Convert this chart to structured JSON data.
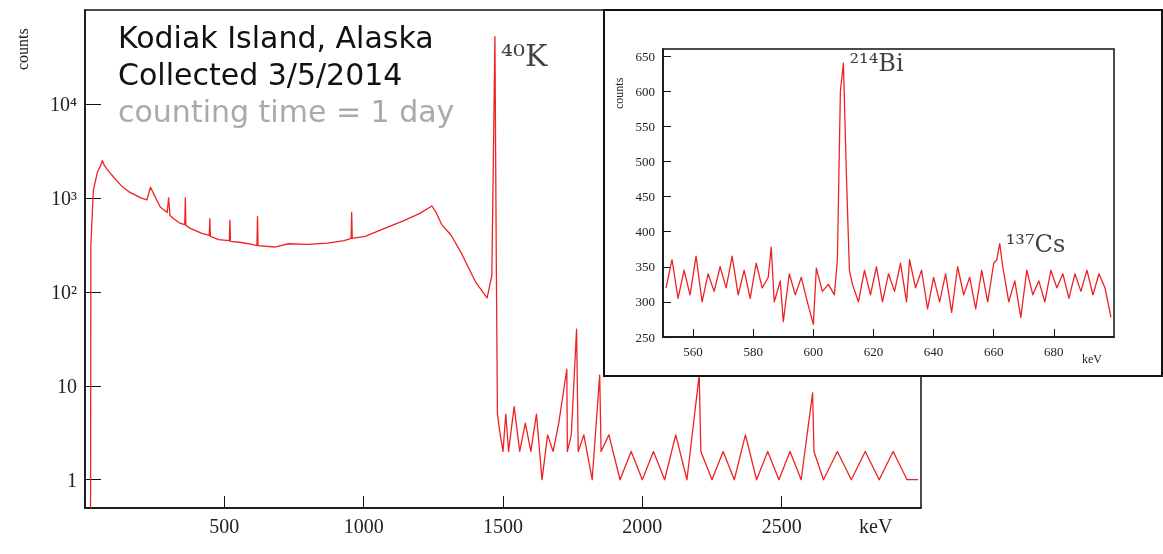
{
  "chart_data": [
    {
      "type": "line",
      "xlabel": "keV",
      "ylabel": "counts",
      "log": "y",
      "xlim": [
        0,
        3000
      ],
      "xticks": [
        500,
        1000,
        1500,
        2000,
        2500
      ],
      "ylim": [
        0.5,
        100000
      ],
      "yticks": [
        1,
        10,
        {
          "value": 100,
          "label": "10²"
        },
        {
          "value": 1000,
          "label": "10³"
        },
        {
          "value": 10000,
          "label": "10⁴"
        }
      ],
      "grid": false,
      "marker": "none",
      "line_style": "solid",
      "annotations": [
        "Kodiak Island, Alaska",
        "Collected 3/5/2014",
        "counting time = 1 day",
        {
          "text": "⁴⁰K",
          "x": 1471,
          "y": 52000
        }
      ],
      "series": [
        {
          "color": "#ee2222",
          "x": [
            20,
            21,
            30,
            45,
            57,
            62,
            70,
            80,
            100,
            130,
            160,
            200,
            222,
            235,
            250,
            270,
            295,
            300,
            305,
            318,
            340,
            358,
            360,
            362,
            380,
            420,
            446,
            448,
            450,
            480,
            518,
            520,
            522,
            560,
            600,
            617,
            619,
            621,
            680,
            730,
            800,
            870,
            930,
            955,
            957,
            959,
            1005,
            1080,
            1142,
            1200,
            1245,
            1260,
            1280,
            1314,
            1350,
            1403,
            1443,
            1460,
            1471,
            1476,
            1480,
            1490,
            1500,
            1510,
            1520,
            1540,
            1560,
            1580,
            1600,
            1620,
            1640,
            1660,
            1680,
            1700,
            1729,
            1731,
            1745,
            1764,
            1770,
            1790,
            1820,
            1847,
            1852,
            1880,
            1920,
            1960,
            2000,
            2040,
            2080,
            2120,
            2160,
            2204,
            2210,
            2250,
            2290,
            2330,
            2370,
            2410,
            2450,
            2490,
            2530,
            2570,
            2611,
            2616,
            2650,
            2700,
            2750,
            2800,
            2850,
            2900,
            2950,
            2990
          ],
          "values": [
            0.5,
            310,
            1200,
            1900,
            2240,
            2500,
            2200,
            2000,
            1700,
            1350,
            1150,
            1000,
            950,
            1300,
            1050,
            800,
            700,
            1000,
            650,
            600,
            540,
            520,
            1000,
            510,
            470,
            420,
            400,
            600,
            390,
            360,
            350,
            580,
            345,
            335,
            320,
            310,
            630,
            310,
            300,
            325,
            320,
            330,
            350,
            370,
            700,
            370,
            390,
            480,
            570,
            680,
            820,
            700,
            520,
            400,
            260,
            125,
            86,
            150,
            52000,
            200,
            5,
            3,
            2,
            5,
            2,
            6,
            2,
            4,
            2,
            5,
            1,
            3,
            2,
            4,
            15,
            2,
            3,
            40,
            2,
            3,
            1,
            13,
            2,
            3,
            1,
            2,
            1,
            2,
            1,
            3,
            1,
            13,
            2,
            1,
            2,
            1,
            3,
            1,
            2,
            1,
            2,
            1,
            8.4,
            2,
            1,
            2,
            1,
            2,
            1,
            2,
            1,
            1
          ]
        }
      ]
    },
    {
      "type": "line",
      "xlabel": "keV",
      "ylabel": "counts",
      "xlim": [
        550,
        700
      ],
      "xticks": [
        560,
        580,
        600,
        620,
        640,
        660,
        680
      ],
      "ylim": [
        250,
        660
      ],
      "yticks": [
        250,
        300,
        350,
        400,
        450,
        500,
        550,
        600,
        650
      ],
      "grid": false,
      "marker": "none",
      "line_style": "solid",
      "annotations": [
        {
          "text": "²¹⁴Bi",
          "x": 610,
          "y": 640
        },
        {
          "text": "¹³⁷Cs",
          "x": 662,
          "y": 383
        }
      ],
      "series": [
        {
          "color": "#ee2222",
          "x": [
            551,
            553,
            555,
            557,
            559,
            561,
            563,
            565,
            567,
            569,
            571,
            573,
            575,
            577,
            579,
            581,
            583,
            585,
            586,
            587,
            589,
            590,
            592,
            594,
            596,
            598,
            600,
            601,
            603,
            605,
            607,
            608,
            609,
            610,
            611,
            612,
            613,
            615,
            617,
            619,
            621,
            623,
            625,
            627,
            629,
            631,
            632,
            634,
            636,
            638,
            640,
            642,
            644,
            646,
            648,
            650,
            652,
            654,
            656,
            658,
            660,
            661,
            662,
            663,
            665,
            667,
            669,
            671,
            673,
            675,
            677,
            679,
            681,
            683,
            685,
            687,
            689,
            691,
            693,
            695,
            697,
            699
          ],
          "values": [
            320,
            360,
            305,
            345,
            310,
            365,
            300,
            340,
            315,
            350,
            320,
            365,
            310,
            345,
            305,
            355,
            320,
            335,
            378,
            300,
            330,
            272,
            340,
            310,
            335,
            300,
            268,
            348,
            315,
            325,
            310,
            360,
            600,
            640,
            480,
            345,
            325,
            300,
            345,
            310,
            350,
            300,
            340,
            315,
            355,
            300,
            360,
            320,
            345,
            290,
            335,
            300,
            340,
            285,
            350,
            310,
            335,
            290,
            345,
            300,
            355,
            360,
            383,
            350,
            300,
            330,
            278,
            345,
            310,
            330,
            300,
            345,
            320,
            340,
            305,
            340,
            315,
            345,
            310,
            340,
            320,
            278
          ]
        }
      ]
    }
  ]
}
